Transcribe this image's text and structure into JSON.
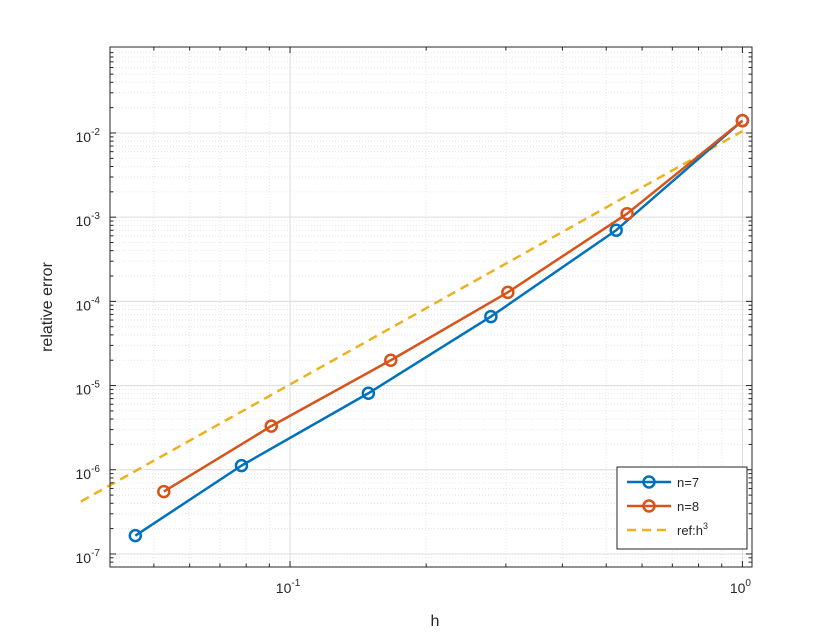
{
  "chart_data": {
    "type": "line",
    "title": "",
    "xlabel": "h",
    "ylabel": "relative error",
    "xscale": "log",
    "yscale": "log",
    "xlim": [
      0.04,
      1.05
    ],
    "ylim": [
      7e-08,
      0.105
    ],
    "grid": true,
    "minor_grid": true,
    "legend_position": "bottom-right",
    "x_ticks": [
      {
        "value": 0.1,
        "base": "10",
        "exp": "-1"
      },
      {
        "value": 1,
        "base": "10",
        "exp": "0"
      }
    ],
    "y_ticks": [
      {
        "value": 1e-07,
        "base": "10",
        "exp": "-7"
      },
      {
        "value": 1e-06,
        "base": "10",
        "exp": "-6"
      },
      {
        "value": 1e-05,
        "base": "10",
        "exp": "-5"
      },
      {
        "value": 0.0001,
        "base": "10",
        "exp": "-4"
      },
      {
        "value": 0.001,
        "base": "10",
        "exp": "-3"
      },
      {
        "value": 0.01,
        "base": "10",
        "exp": "-2"
      }
    ],
    "series": [
      {
        "name": "n=7",
        "color": "#0072BD",
        "style": "solid",
        "marker": "circle",
        "x": [
          0.0455,
          0.0781,
          0.149,
          0.278,
          0.526,
          1.0
        ],
        "y": [
          1.65e-07,
          1.12e-06,
          8.1e-06,
          6.6e-05,
          0.0007,
          0.014
        ]
      },
      {
        "name": "n=8",
        "color": "#D95319",
        "style": "solid",
        "marker": "circle",
        "x": [
          0.0526,
          0.0909,
          0.167,
          0.303,
          0.556,
          1.0
        ],
        "y": [
          5.5e-07,
          3.3e-06,
          2e-05,
          0.000128,
          0.0011,
          0.014
        ]
      },
      {
        "name": "ref:h",
        "name_sup": "3",
        "color": "#EDB120",
        "style": "dashed",
        "marker": "none",
        "x": [
          0.0345,
          1.0
        ],
        "y": [
          4.2e-07,
          0.0105
        ]
      }
    ]
  }
}
